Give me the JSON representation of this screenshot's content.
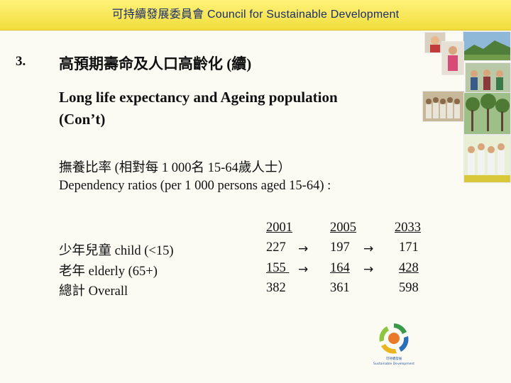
{
  "header": {
    "title": "可持續發展委員會 Council for Sustainable Development"
  },
  "slide": {
    "section_number": "3.",
    "title_zh": "高預期壽命及人口高齡化 (續)",
    "title_en_line1": "Long life expectancy and Ageing population",
    "title_en_line2": "(Con’t)",
    "subtitle_zh": "撫養比率 (相對每 1 000名 15-64歲人士）",
    "subtitle_en": "Dependency ratios (per 1 000 persons aged 15-64) :"
  },
  "table": {
    "columns": [
      "2001",
      "2005",
      "2033"
    ],
    "rows": [
      {
        "label": "少年兒童 child (<15)",
        "values": [
          "227",
          "197",
          "171"
        ]
      },
      {
        "label": "老年 elderly (65+)",
        "values": [
          "155",
          "164",
          "428"
        ]
      },
      {
        "label": "總計 Overall",
        "values": [
          "382",
          "361",
          "598"
        ]
      }
    ]
  },
  "logo": {
    "name_zh": "可持續發展",
    "name_en": "Sustainable Development"
  }
}
